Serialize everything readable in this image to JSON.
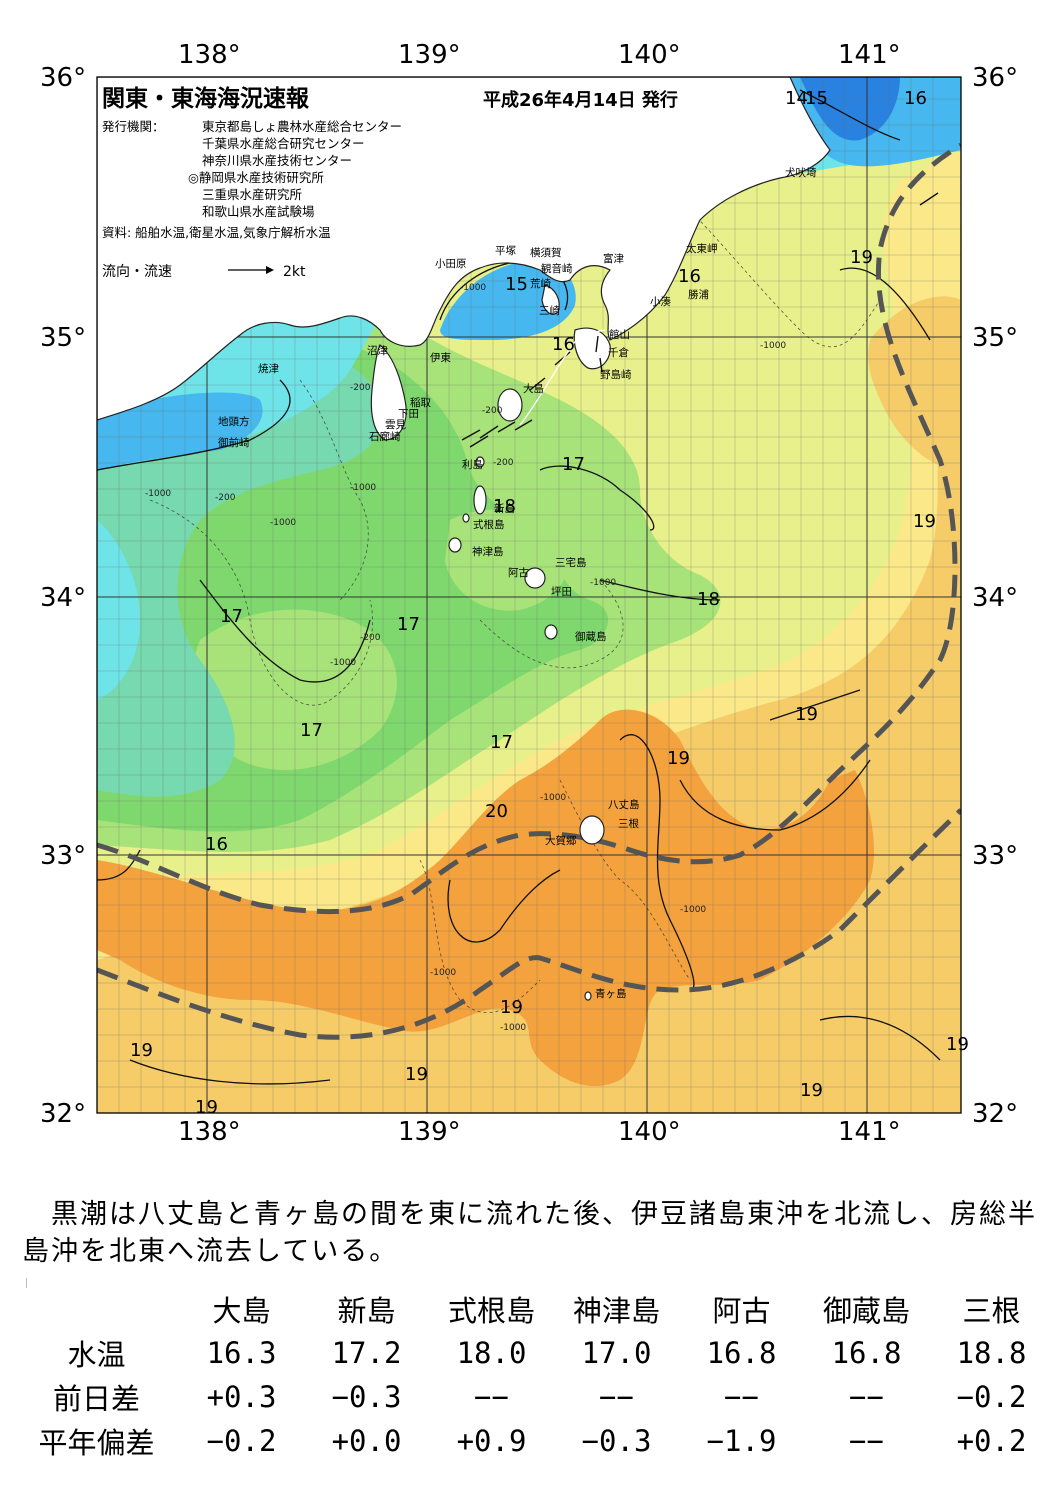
{
  "title": "関東・東海海況速報",
  "issue_date": "平成26年4月14日 発行",
  "issuers_label": "発行機関：",
  "issuers": [
    "東京都島しょ農林水産総合センター",
    "千葉県水産総合研究センター",
    "神奈川県水産技術センター",
    "◎静岡県水産技術研究所",
    "三重県水産研究所",
    "和歌山県水産試験場"
  ],
  "sources": "資料: 船舶水温,衛星水温,気象庁解析水温",
  "legend": {
    "label": "流向・流速",
    "unit": "2kt"
  },
  "axes": {
    "longitudes": [
      "138°",
      "139°",
      "140°",
      "141°"
    ],
    "latitudes": [
      "36°",
      "35°",
      "34°",
      "33°",
      "32°"
    ]
  },
  "isotherm_labels": [
    "14",
    "15",
    "16",
    "15",
    "16",
    "16",
    "17",
    "18",
    "17",
    "17",
    "17",
    "18",
    "19",
    "19",
    "19",
    "19",
    "17",
    "16",
    "20",
    "19",
    "19",
    "19",
    "19",
    "19",
    "19"
  ],
  "depth_labels": [
    "-1000",
    "-200",
    "-1000",
    "-200",
    "-1000",
    "-200",
    "-1000",
    "-200",
    "-200",
    "-1000",
    "-1000",
    "-1000",
    "-1000",
    "-1000",
    "-1000",
    "-1000"
  ],
  "place_names": [
    "犬吠埼",
    "太東岬",
    "勝浦",
    "小湊",
    "富津",
    "横須賀",
    "観音崎",
    "平塚",
    "小田原",
    "荒崎",
    "三崎",
    "館山",
    "千倉",
    "野島崎",
    "大島",
    "沼津",
    "伊東",
    "焼津",
    "稲取",
    "下田",
    "雲見",
    "石廊崎",
    "地頭方",
    "御前崎",
    "利島",
    "新島",
    "式根島",
    "神津島",
    "三宅島",
    "阿古",
    "坪田",
    "御蔵島",
    "八丈島",
    "三根",
    "大賀郷",
    "青ヶ島"
  ],
  "summary": "　黒潮は八丈島と青ヶ島の間を東に流れた後、伊豆諸島東沖を北流し、房総半島沖を北東へ流去している。",
  "table": {
    "columns": [
      "大島",
      "新島",
      "式根島",
      "神津島",
      "阿古",
      "御蔵島",
      "三根"
    ],
    "rows": [
      {
        "label": "水温",
        "values": [
          "16.3",
          "17.2",
          "18.0",
          "17.0",
          "16.8",
          "16.8",
          "18.8"
        ]
      },
      {
        "label": "前日差",
        "values": [
          "+0.3",
          "−0.3",
          "−−",
          "−−",
          "−−",
          "−−",
          "−0.2"
        ]
      },
      {
        "label": "平年偏差",
        "values": [
          "−0.2",
          "+0.0",
          "+0.9",
          "−0.3",
          "−1.9",
          "−−",
          "+0.2"
        ]
      }
    ]
  },
  "colors": {
    "t14": "#2a82e0",
    "t15": "#46b8ef",
    "t16": "#6fe4e8",
    "t165": "#77d9b0",
    "t17": "#7fd86e",
    "t175": "#a8e37a",
    "t18": "#e7f08a",
    "t185": "#fbe989",
    "t19": "#f6cc69",
    "t20": "#f3a23e",
    "land": "#ffffff",
    "kuroshio": "#555555"
  }
}
